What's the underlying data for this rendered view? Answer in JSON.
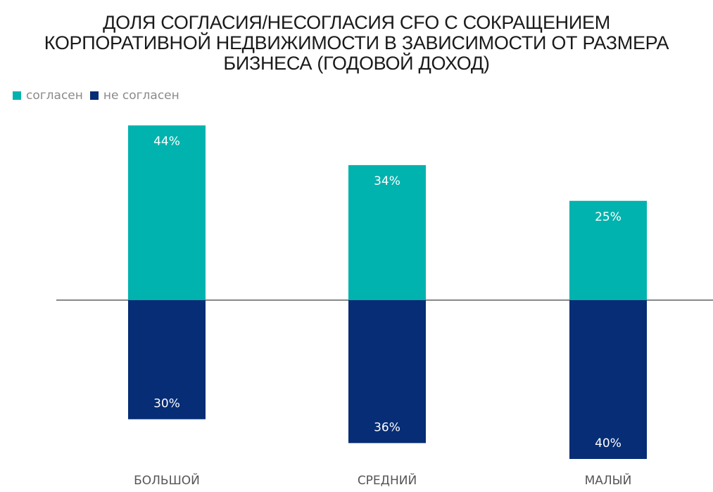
{
  "chart_data": {
    "type": "bar",
    "title": "ДОЛЯ СОГЛАСИЯ/НЕСОГЛАСИЯ CFO С СОКРАЩЕНИЕМ\nКОРПОРАТИВНОЙ НЕДВИЖИМОСТИ В ЗАВИСИМОСТИ ОТ РАЗМЕРА\nБИЗНЕСА (ГОДОВОЙ ДОХОД)",
    "categories": [
      "БОЛЬШОЙ",
      "СРЕДНИЙ",
      "МАЛЫЙ"
    ],
    "series": [
      {
        "name": "согласен",
        "values": [
          44,
          34,
          25
        ],
        "labels": [
          "44%",
          "34%",
          "25%"
        ],
        "color": "#00b3ae",
        "direction": "up"
      },
      {
        "name": "не согласен",
        "values": [
          30,
          36,
          40
        ],
        "labels": [
          "30%",
          "36%",
          "40%"
        ],
        "color": "#062d75",
        "direction": "down"
      }
    ],
    "legend_position": "top-left",
    "grid": false,
    "baseline_color": "#888888"
  }
}
